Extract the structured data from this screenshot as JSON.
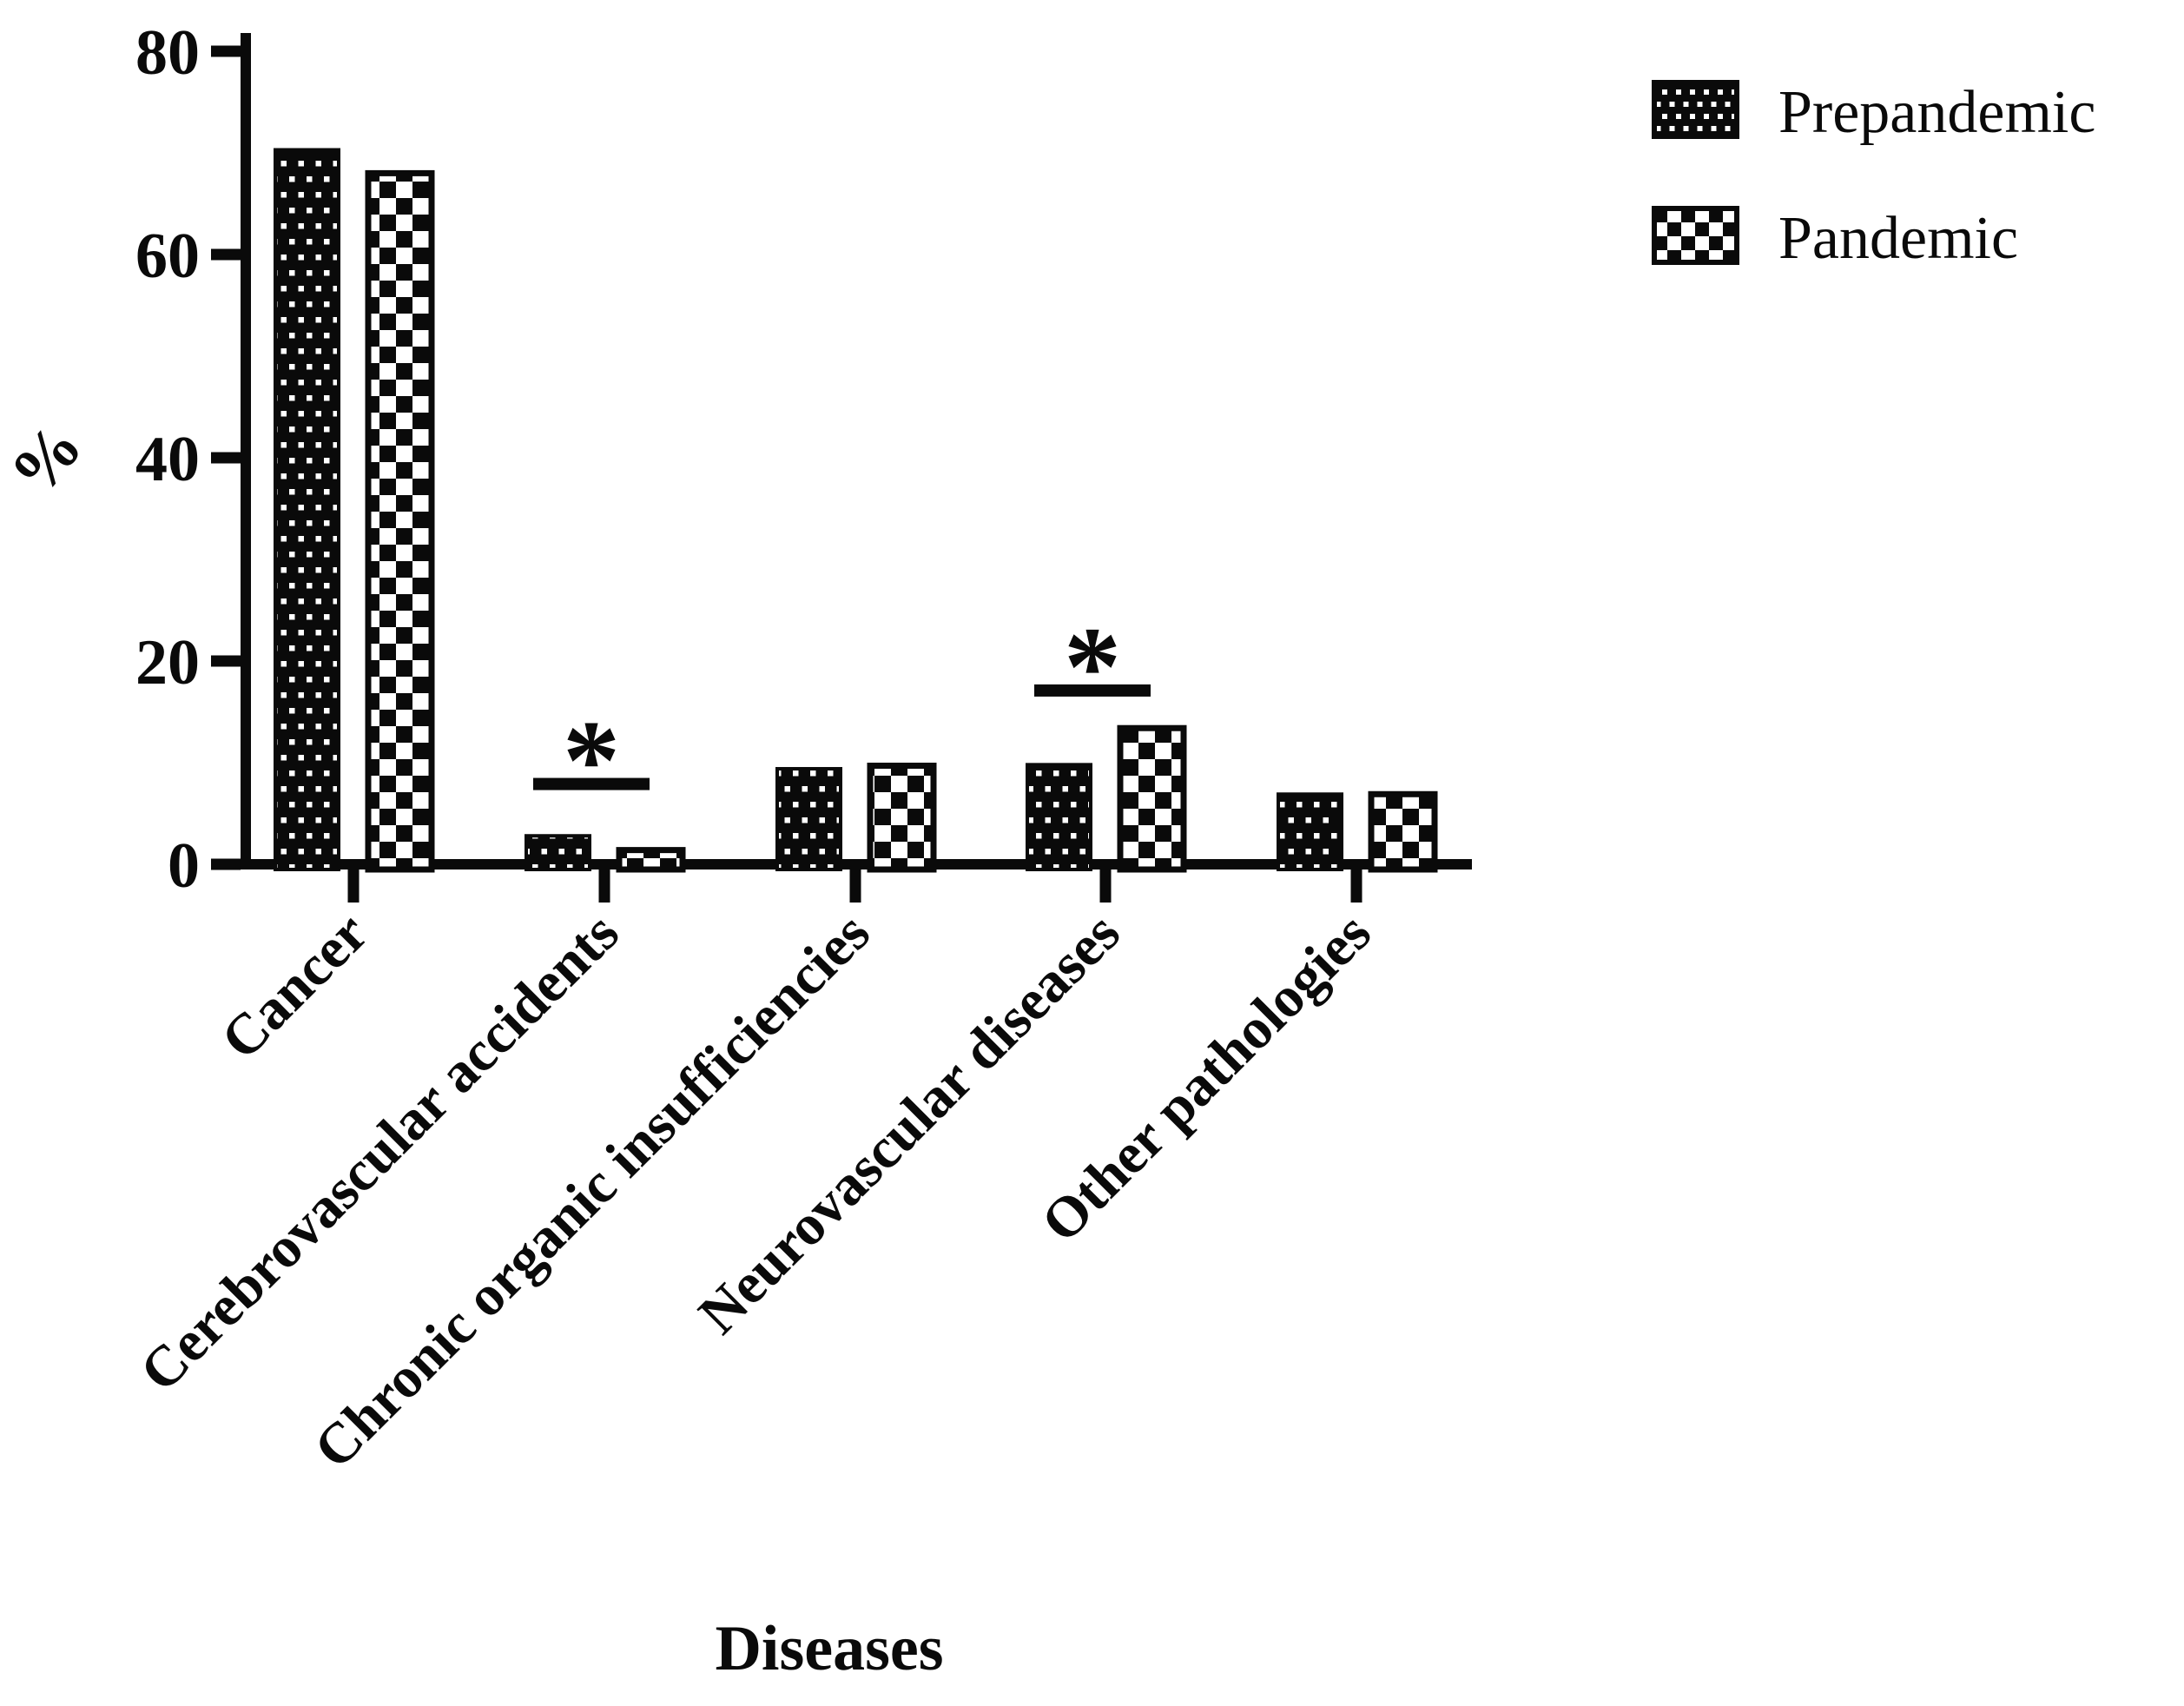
{
  "figure": {
    "background": "#ffffff",
    "ink_color": "#0a0a0a"
  },
  "chart_data": {
    "type": "bar",
    "title": "",
    "xlabel": "Diseases",
    "ylabel": "%",
    "ylim": [
      0,
      80
    ],
    "yticks": [
      0,
      20,
      40,
      60,
      80
    ],
    "grid": false,
    "legend_position": "top-right",
    "categories": [
      "Cancer",
      "Cerebrovascular accidents",
      "Chronic organic insufficiencies",
      "Neurovascular diseases",
      "Other pathologies"
    ],
    "series": [
      {
        "name": "Prepandemic",
        "pattern": "dots",
        "values": [
          70.3,
          2.8,
          9.4,
          9.8,
          6.9
        ]
      },
      {
        "name": "Pandemic",
        "pattern": "checkerboard",
        "values": [
          68.0,
          1.4,
          9.7,
          13.4,
          6.9
        ]
      }
    ],
    "significance_markers": [
      {
        "category": "Cerebrovascular accidents",
        "category_index": 1,
        "label": "*",
        "line_height_pct": 7.9
      },
      {
        "category": "Neurovascular diseases",
        "category_index": 3,
        "label": "*",
        "line_height_pct": 17.1
      }
    ]
  }
}
